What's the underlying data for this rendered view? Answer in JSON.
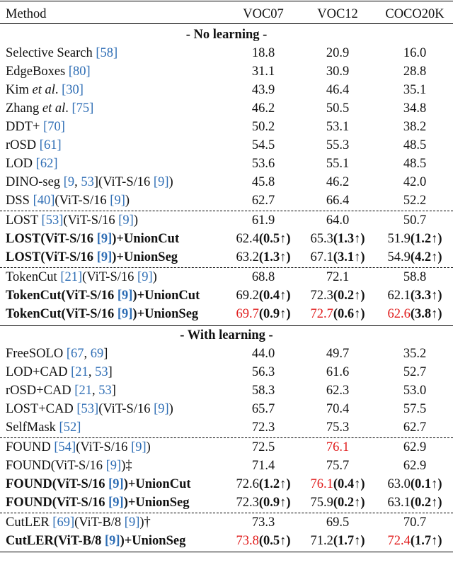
{
  "header": [
    "Method",
    "VOC07",
    "VOC12",
    "COCO20K"
  ],
  "sections": [
    {
      "title": "- No learning -",
      "rows": [
        {
          "method": [
            [
              "Selective Search ",
              ""
            ],
            [
              "[58]",
              "ref"
            ]
          ],
          "v": [
            [
              [
                "18.8",
                ""
              ]
            ],
            [
              [
                "20.9",
                ""
              ]
            ],
            [
              [
                "16.0",
                ""
              ]
            ]
          ]
        },
        {
          "method": [
            [
              "EdgeBoxes ",
              ""
            ],
            [
              "[80]",
              "ref"
            ]
          ],
          "v": [
            [
              [
                "31.1",
                ""
              ]
            ],
            [
              [
                "30.9",
                ""
              ]
            ],
            [
              [
                "28.8",
                ""
              ]
            ]
          ]
        },
        {
          "method": [
            [
              "Kim ",
              ""
            ],
            [
              "et al",
              ""
            ],
            [
              ". ",
              ""
            ],
            [
              "[30]",
              "ref"
            ]
          ],
          "v": [
            [
              [
                "43.9",
                ""
              ]
            ],
            [
              [
                "46.4",
                ""
              ]
            ],
            [
              [
                "35.1",
                ""
              ]
            ]
          ]
        },
        {
          "method": [
            [
              "Zhang ",
              ""
            ],
            [
              "et al",
              ""
            ],
            [
              ". ",
              ""
            ],
            [
              "[75]",
              "ref"
            ]
          ],
          "v": [
            [
              [
                "46.2",
                ""
              ]
            ],
            [
              [
                "50.5",
                ""
              ]
            ],
            [
              [
                "34.8",
                ""
              ]
            ]
          ]
        },
        {
          "method": [
            [
              "DDT+ ",
              ""
            ],
            [
              "[70]",
              "ref"
            ]
          ],
          "v": [
            [
              [
                "50.2",
                ""
              ]
            ],
            [
              [
                "53.1",
                ""
              ]
            ],
            [
              [
                "38.2",
                ""
              ]
            ]
          ]
        },
        {
          "method": [
            [
              "rOSD ",
              ""
            ],
            [
              "[61]",
              "ref"
            ]
          ],
          "v": [
            [
              [
                "54.5",
                ""
              ]
            ],
            [
              [
                "55.3",
                ""
              ]
            ],
            [
              [
                "48.5",
                ""
              ]
            ]
          ]
        },
        {
          "method": [
            [
              "LOD ",
              ""
            ],
            [
              "[62]",
              "ref"
            ]
          ],
          "v": [
            [
              [
                "53.6",
                ""
              ]
            ],
            [
              [
                "55.1",
                ""
              ]
            ],
            [
              [
                "48.5",
                ""
              ]
            ]
          ]
        },
        {
          "method": [
            [
              "DINO-seg ",
              ""
            ],
            [
              "[9",
              "ref"
            ],
            [
              ", ",
              ""
            ],
            [
              "53",
              "ref"
            ],
            [
              "]",
              ""
            ],
            [
              "(ViT-S/16 ",
              ""
            ],
            [
              "[9]",
              "ref"
            ],
            [
              ")",
              ""
            ]
          ],
          "v": [
            [
              [
                "45.8",
                ""
              ]
            ],
            [
              [
                "46.2",
                ""
              ]
            ],
            [
              [
                "42.0",
                ""
              ]
            ]
          ]
        },
        {
          "method": [
            [
              "DSS ",
              ""
            ],
            [
              "[40]",
              "ref"
            ],
            [
              "(ViT-S/16 ",
              ""
            ],
            [
              "[9]",
              "ref"
            ],
            [
              ")",
              ""
            ]
          ],
          "v": [
            [
              [
                "62.7",
                ""
              ]
            ],
            [
              [
                "66.4",
                ""
              ]
            ],
            [
              [
                "52.2",
                ""
              ]
            ]
          ]
        },
        {
          "method": [
            [
              "LOST ",
              ""
            ],
            [
              "[53]",
              "ref"
            ],
            [
              "(ViT-S/16 ",
              ""
            ],
            [
              "[9]",
              "ref"
            ],
            [
              ")",
              ""
            ]
          ],
          "v": [
            [
              [
                "61.9",
                ""
              ]
            ],
            [
              [
                "64.0",
                ""
              ]
            ],
            [
              [
                "50.7",
                ""
              ]
            ]
          ]
        },
        {
          "method": [
            [
              "LOST(ViT-S/16 ",
              "b"
            ],
            [
              "[9]",
              "bref"
            ],
            [
              ")+UnionCut",
              "b"
            ]
          ],
          "v": [
            [
              [
                "62.4",
                ""
              ],
              [
                "(0.5↑)",
                "b"
              ]
            ],
            [
              [
                "65.3",
                ""
              ],
              [
                "(1.3↑)",
                "b"
              ]
            ],
            [
              [
                "51.9",
                ""
              ],
              [
                "(1.2↑)",
                "b"
              ]
            ]
          ]
        },
        {
          "method": [
            [
              "LOST(ViT-S/16 ",
              "b"
            ],
            [
              "[9]",
              "bref"
            ],
            [
              ")+UnionSeg",
              "b"
            ]
          ],
          "v": [
            [
              [
                "63.2",
                ""
              ],
              [
                "(1.3↑)",
                "b"
              ]
            ],
            [
              [
                "67.1",
                ""
              ],
              [
                "(3.1↑)",
                "b"
              ]
            ],
            [
              [
                "54.9",
                ""
              ],
              [
                "(4.2↑)",
                "b"
              ]
            ]
          ]
        },
        {
          "method": [
            [
              "TokenCut ",
              ""
            ],
            [
              "[21]",
              "ref"
            ],
            [
              "(ViT-S/16 ",
              ""
            ],
            [
              "[9]",
              "ref"
            ],
            [
              ")",
              ""
            ]
          ],
          "v": [
            [
              [
                "68.8",
                ""
              ]
            ],
            [
              [
                "72.1",
                ""
              ]
            ],
            [
              [
                "58.8",
                ""
              ]
            ]
          ]
        },
        {
          "method": [
            [
              "TokenCut(ViT-S/16 ",
              "b"
            ],
            [
              "[9]",
              "bref"
            ],
            [
              ")+UnionCut",
              "b"
            ]
          ],
          "v": [
            [
              [
                "69.2",
                ""
              ],
              [
                "(0.4↑)",
                "b"
              ]
            ],
            [
              [
                "72.3",
                ""
              ],
              [
                "(0.2↑)",
                "b"
              ]
            ],
            [
              [
                "62.1",
                ""
              ],
              [
                "(3.3↑)",
                "b"
              ]
            ]
          ]
        },
        {
          "method": [
            [
              "TokenCut(ViT-S/16 ",
              "b"
            ],
            [
              "[9]",
              "bref"
            ],
            [
              ")+UnionSeg",
              "b"
            ]
          ],
          "v": [
            [
              [
                "69.7",
                "red"
              ],
              [
                "(0.9↑)",
                "b"
              ]
            ],
            [
              [
                "72.7",
                "red"
              ],
              [
                "(0.6↑)",
                "b"
              ]
            ],
            [
              [
                "62.6",
                "red"
              ],
              [
                "(3.8↑)",
                "b"
              ]
            ]
          ]
        }
      ]
    },
    {
      "title": "- With learning -",
      "rows": [
        {
          "method": [
            [
              "FreeSOLO ",
              ""
            ],
            [
              "[67",
              "ref"
            ],
            [
              ", ",
              ""
            ],
            [
              "69",
              "ref"
            ],
            [
              "]",
              ""
            ]
          ],
          "v": [
            [
              [
                "44.0",
                ""
              ]
            ],
            [
              [
                "49.7",
                ""
              ]
            ],
            [
              [
                "35.2",
                ""
              ]
            ]
          ]
        },
        {
          "method": [
            [
              "LOD+CAD ",
              ""
            ],
            [
              "[21",
              "ref"
            ],
            [
              ", ",
              ""
            ],
            [
              "53",
              "ref"
            ],
            [
              "]",
              ""
            ]
          ],
          "v": [
            [
              [
                "56.3",
                ""
              ]
            ],
            [
              [
                "61.6",
                ""
              ]
            ],
            [
              [
                "52.7",
                ""
              ]
            ]
          ]
        },
        {
          "method": [
            [
              "rOSD+CAD ",
              ""
            ],
            [
              "[21",
              "ref"
            ],
            [
              ", ",
              ""
            ],
            [
              "53",
              "ref"
            ],
            [
              "]",
              ""
            ]
          ],
          "v": [
            [
              [
                "58.3",
                ""
              ]
            ],
            [
              [
                "62.3",
                ""
              ]
            ],
            [
              [
                "53.0",
                ""
              ]
            ]
          ]
        },
        {
          "method": [
            [
              "LOST+CAD ",
              ""
            ],
            [
              "[53]",
              "ref"
            ],
            [
              "(ViT-S/16 ",
              ""
            ],
            [
              "[9]",
              "ref"
            ],
            [
              ")",
              ""
            ]
          ],
          "v": [
            [
              [
                "65.7",
                ""
              ]
            ],
            [
              [
                "70.4",
                ""
              ]
            ],
            [
              [
                "57.5",
                ""
              ]
            ]
          ]
        },
        {
          "method": [
            [
              "SelfMask ",
              ""
            ],
            [
              "[52]",
              "ref"
            ]
          ],
          "v": [
            [
              [
                "72.3",
                ""
              ]
            ],
            [
              [
                "75.3",
                ""
              ]
            ],
            [
              [
                "62.7",
                ""
              ]
            ]
          ]
        },
        {
          "method": [
            [
              "FOUND ",
              ""
            ],
            [
              "[54]",
              "ref"
            ],
            [
              "(ViT-S/16 ",
              ""
            ],
            [
              "[9]",
              "ref"
            ],
            [
              ")",
              ""
            ]
          ],
          "v": [
            [
              [
                "72.5",
                ""
              ]
            ],
            [
              [
                "76.1",
                "red"
              ]
            ],
            [
              [
                "62.9",
                ""
              ]
            ]
          ]
        },
        {
          "method": [
            [
              "FOUND(ViT-S/16 ",
              ""
            ],
            [
              "[9]",
              "ref"
            ],
            [
              ")‡",
              ""
            ]
          ],
          "v": [
            [
              [
                "71.4",
                ""
              ]
            ],
            [
              [
                "75.7",
                ""
              ]
            ],
            [
              [
                "62.9",
                ""
              ]
            ]
          ]
        },
        {
          "method": [
            [
              "FOUND(ViT-S/16 ",
              "b"
            ],
            [
              "[9]",
              "bref"
            ],
            [
              ")+UnionCut",
              "b"
            ]
          ],
          "v": [
            [
              [
                "72.6",
                ""
              ],
              [
                "(1.2↑)",
                "b"
              ]
            ],
            [
              [
                "76.1",
                "red"
              ],
              [
                "(0.4↑)",
                "b"
              ]
            ],
            [
              [
                "63.0",
                ""
              ],
              [
                "(0.1↑)",
                "b"
              ]
            ]
          ]
        },
        {
          "method": [
            [
              "FOUND(ViT-S/16 ",
              "b"
            ],
            [
              "[9]",
              "bref"
            ],
            [
              ")+UnionSeg",
              "b"
            ]
          ],
          "v": [
            [
              [
                "72.3",
                ""
              ],
              [
                "(0.9↑)",
                "b"
              ]
            ],
            [
              [
                "75.9",
                ""
              ],
              [
                "(0.2↑)",
                "b"
              ]
            ],
            [
              [
                "63.1",
                ""
              ],
              [
                "(0.2↑)",
                "b"
              ]
            ]
          ]
        },
        {
          "method": [
            [
              "CutLER ",
              ""
            ],
            [
              "[69]",
              "ref"
            ],
            [
              "(ViT-B/8 ",
              ""
            ],
            [
              "[9]",
              "ref"
            ],
            [
              ")†",
              ""
            ]
          ],
          "v": [
            [
              [
                "73.3",
                ""
              ]
            ],
            [
              [
                "69.5",
                ""
              ]
            ],
            [
              [
                "70.7",
                ""
              ]
            ]
          ]
        },
        {
          "method": [
            [
              "CutLER(ViT-B/8 ",
              "b"
            ],
            [
              "[9]",
              "bref"
            ],
            [
              ")+UnionSeg",
              "b"
            ]
          ],
          "v": [
            [
              [
                "73.8",
                "red"
              ],
              [
                "(0.5↑)",
                "b"
              ]
            ],
            [
              [
                "71.2",
                ""
              ],
              [
                "(1.7↑)",
                "b"
              ]
            ],
            [
              [
                "72.4",
                "red"
              ],
              [
                "(1.7↑)",
                "b"
              ]
            ]
          ]
        }
      ]
    }
  ]
}
